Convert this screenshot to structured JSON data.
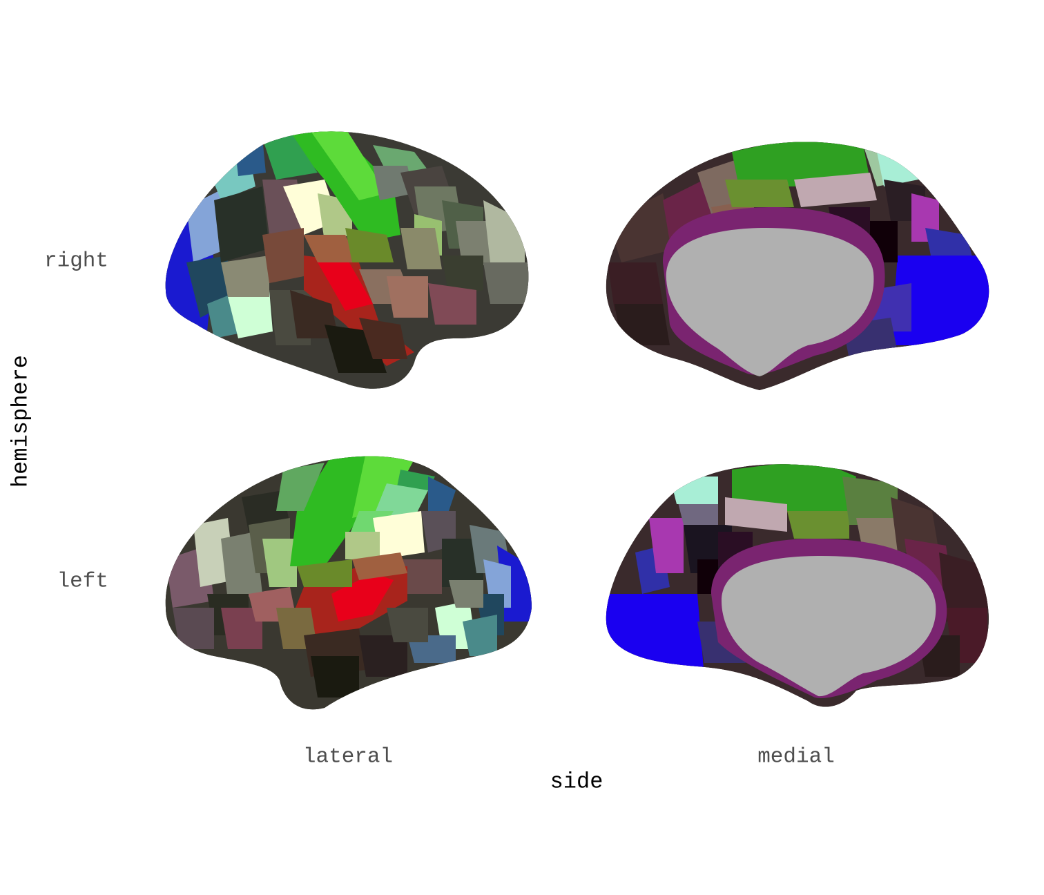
{
  "axes": {
    "x_title": "side",
    "y_title": "hemisphere",
    "columns": [
      "lateral",
      "medial"
    ],
    "rows": [
      "right",
      "left"
    ]
  },
  "colors": {
    "motor_green": "#22c41a",
    "auditory_red": "#e8001a",
    "visual_blue": "#1a00f0",
    "medial_wall": "#b0b0b0",
    "outline": "#1e1e16",
    "cingulate_purple": "#7a2470"
  }
}
